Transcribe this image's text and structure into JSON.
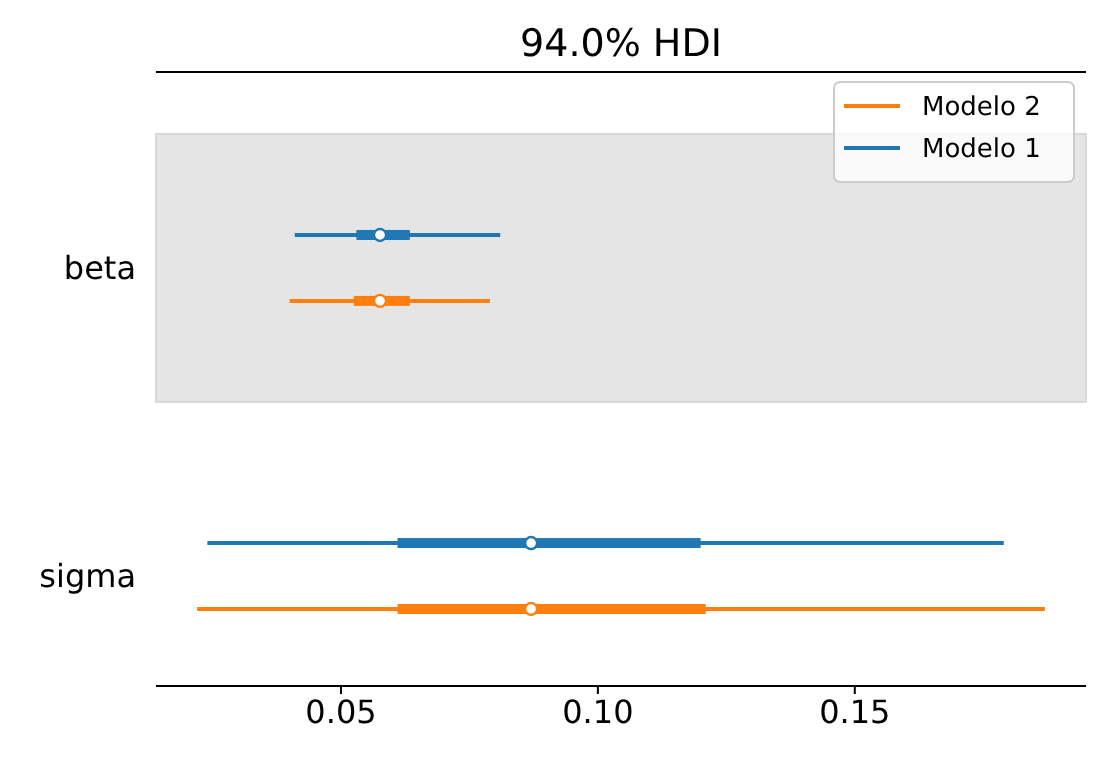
{
  "chart_data": {
    "type": "box",
    "orientation": "horizontal",
    "title": "94.0% HDI",
    "categories": [
      "beta",
      "sigma"
    ],
    "series": [
      {
        "name": "Modelo 2",
        "color": "#ff7f0e",
        "boxes": [
          {
            "low": 0.04,
            "q1": 0.0525,
            "median": 0.0576,
            "q3": 0.0634,
            "high": 0.079
          },
          {
            "low": 0.022,
            "q1": 0.061,
            "median": 0.087,
            "q3": 0.121,
            "high": 0.187
          }
        ]
      },
      {
        "name": "Modelo 1",
        "color": "#1f77b4",
        "boxes": [
          {
            "low": 0.041,
            "q1": 0.053,
            "median": 0.0576,
            "q3": 0.0634,
            "high": 0.081
          },
          {
            "low": 0.024,
            "q1": 0.061,
            "median": 0.087,
            "q3": 0.12,
            "high": 0.179
          }
        ]
      }
    ],
    "bands": [
      {
        "axis": "y",
        "from": "beta",
        "to": "beta",
        "color": "#e5e5e5"
      }
    ],
    "xlim": [
      0.014,
      0.195
    ],
    "xticks": [
      {
        "value": 0.05,
        "label": "0.05"
      },
      {
        "value": 0.1,
        "label": "0.10"
      },
      {
        "value": 0.15,
        "label": "0.15"
      }
    ],
    "grid": false,
    "legend": "top right"
  }
}
